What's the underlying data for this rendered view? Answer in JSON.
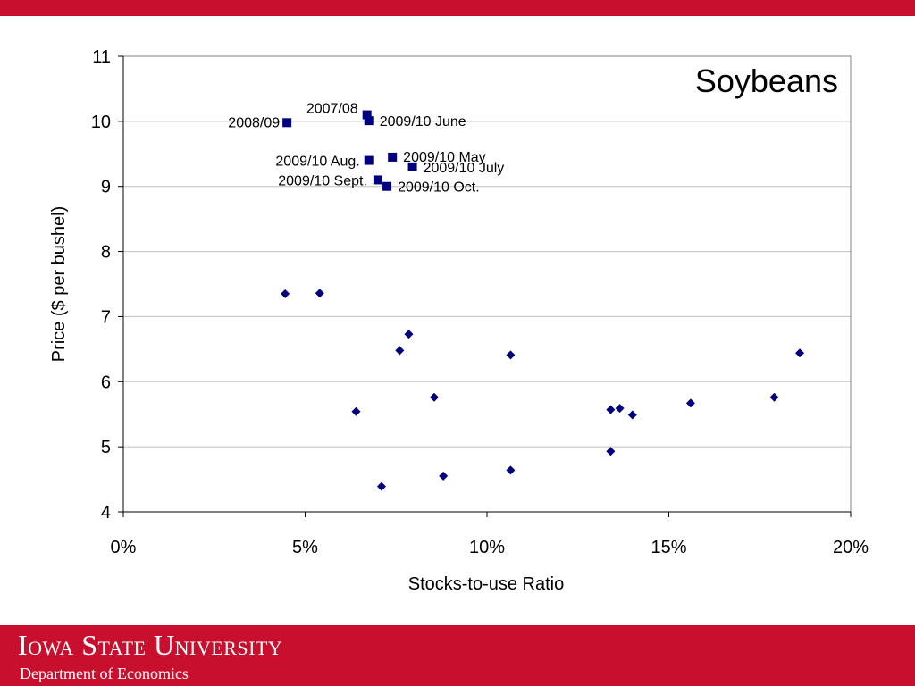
{
  "footer": {
    "university": "Iowa State University",
    "department": "Department of Economics"
  },
  "colors": {
    "brand": "#c8102e",
    "marker": "#00007f",
    "grid": "#c0c0c0"
  },
  "chart_data": {
    "type": "scatter",
    "title": "Soybeans",
    "xlabel": "Stocks-to-use Ratio",
    "ylabel": "Price ($ per bushel)",
    "xlim": [
      0,
      20
    ],
    "ylim": [
      4,
      11
    ],
    "x_ticks": [
      "0%",
      "5%",
      "10%",
      "15%",
      "20%"
    ],
    "y_ticks": [
      "4",
      "5",
      "6",
      "7",
      "8",
      "9",
      "10",
      "11"
    ],
    "grid": true,
    "series": [
      {
        "marker": "diamond",
        "points": [
          {
            "x": 4.45,
            "y": 7.35
          },
          {
            "x": 5.4,
            "y": 7.36
          },
          {
            "x": 6.4,
            "y": 5.54
          },
          {
            "x": 7.1,
            "y": 4.39
          },
          {
            "x": 7.6,
            "y": 6.48
          },
          {
            "x": 7.85,
            "y": 6.73
          },
          {
            "x": 8.55,
            "y": 5.76
          },
          {
            "x": 8.8,
            "y": 4.55
          },
          {
            "x": 10.65,
            "y": 6.41
          },
          {
            "x": 10.65,
            "y": 4.64
          },
          {
            "x": 13.4,
            "y": 5.57
          },
          {
            "x": 13.4,
            "y": 4.93
          },
          {
            "x": 13.65,
            "y": 5.59
          },
          {
            "x": 14.0,
            "y": 5.49
          },
          {
            "x": 15.6,
            "y": 5.67
          },
          {
            "x": 17.9,
            "y": 5.76
          },
          {
            "x": 18.6,
            "y": 6.44
          }
        ]
      },
      {
        "marker": "square",
        "points": [
          {
            "x": 4.5,
            "y": 9.98,
            "label": "2008/09"
          },
          {
            "x": 6.7,
            "y": 10.1,
            "label": "2007/08"
          },
          {
            "x": 6.75,
            "y": 10.01,
            "label": "2009/10 June"
          },
          {
            "x": 7.4,
            "y": 9.45,
            "label": "2009/10 May"
          },
          {
            "x": 7.95,
            "y": 9.3,
            "label": "2009/10 July"
          },
          {
            "x": 6.75,
            "y": 9.4,
            "label": "2009/10 Aug."
          },
          {
            "x": 7.0,
            "y": 9.1,
            "label": "2009/10 Sept."
          },
          {
            "x": 7.25,
            "y": 9.0,
            "label": "2009/10 Oct."
          }
        ]
      }
    ]
  }
}
